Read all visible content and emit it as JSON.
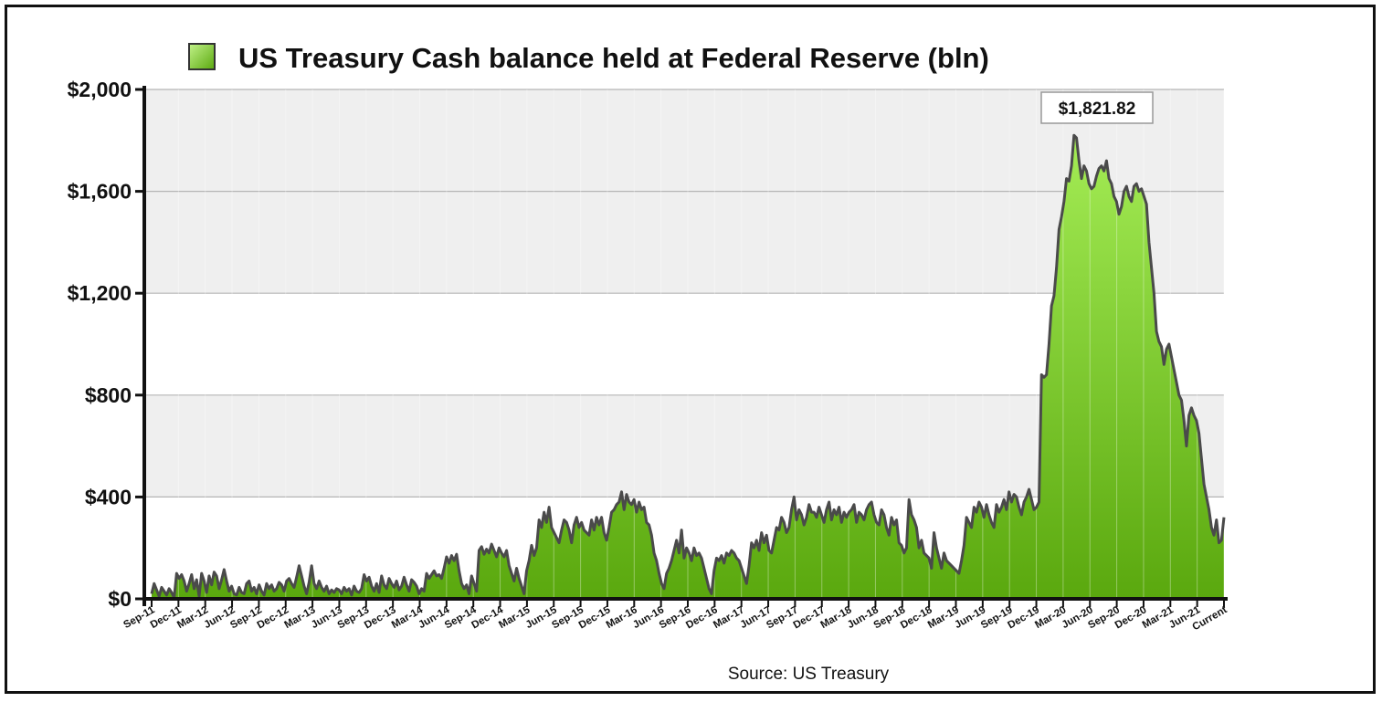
{
  "chart_data": {
    "type": "area",
    "title": "US Treasury Cash balance held at Federal Reserve (bln)",
    "source": "Source: US Treasury",
    "ylim": [
      0,
      2000
    ],
    "yticks": [
      "$0",
      "$400",
      "$800",
      "$1,200",
      "$1,600",
      "$2,000"
    ],
    "ytick_values": [
      0,
      400,
      800,
      1200,
      1600,
      2000
    ],
    "xtick_labels": [
      "Sep-11",
      "Dec-11",
      "Mar-12",
      "Jun-12",
      "Sep-12",
      "Dec-12",
      "Mar-13",
      "Jun-13",
      "Sep-13",
      "Dec-13",
      "Mar-14",
      "Jun-14",
      "Sep-14",
      "Dec-14",
      "Mar-15",
      "Jun-15",
      "Sep-15",
      "Dec-15",
      "Mar-16",
      "Jun-16",
      "Sep-16",
      "Dec-16",
      "Mar-17",
      "Jun-17",
      "Sep-17",
      "Dec-17",
      "Mar-18",
      "Jun-18",
      "Sep-18",
      "Dec-18",
      "Mar-19",
      "Jun-19",
      "Sep-19",
      "Dec-19",
      "Mar-20",
      "Jun-20",
      "Sep-20",
      "Dec-20",
      "Mar-21",
      "Jun-21",
      "Current"
    ],
    "peak_label": "$1,821.82",
    "peak_value": 1821.82,
    "grid": true,
    "colors": {
      "fill_light": "#9be34a",
      "fill_dark": "#5aa80e",
      "line": "#4a4a4a",
      "plot_bg": "#efefef",
      "gridline": "#b5b5b5"
    },
    "series": [
      {
        "values": [
          20,
          60,
          35,
          10,
          45,
          30,
          15,
          40,
          25,
          5,
          100,
          80,
          95,
          70,
          30,
          60,
          95,
          40,
          75,
          10,
          100,
          70,
          25,
          90,
          55,
          105,
          90,
          40,
          75,
          115,
          70,
          30,
          50,
          20,
          15,
          45,
          25,
          20,
          60,
          70,
          30,
          45,
          20,
          55,
          30,
          15,
          60,
          40,
          55,
          30,
          40,
          65,
          55,
          30,
          70,
          80,
          60,
          45,
          85,
          130,
          90,
          50,
          20,
          65,
          130,
          60,
          40,
          70,
          45,
          30,
          50,
          20,
          35,
          25,
          40,
          35,
          20,
          45,
          30,
          40,
          15,
          50,
          30,
          25,
          40,
          95,
          70,
          85,
          50,
          30,
          60,
          25,
          90,
          55,
          40,
          80,
          60,
          45,
          70,
          35,
          50,
          85,
          55,
          30,
          75,
          65,
          50,
          20,
          40,
          30,
          100,
          80,
          95,
          110,
          90,
          95,
          80,
          120,
          165,
          140,
          170,
          150,
          175,
          110,
          60,
          40,
          55,
          20,
          90,
          60,
          30,
          190,
          205,
          175,
          195,
          180,
          215,
          190,
          165,
          200,
          180,
          165,
          190,
          130,
          100,
          70,
          120,
          80,
          50,
          20,
          110,
          150,
          210,
          170,
          200,
          310,
          280,
          340,
          300,
          360,
          280,
          260,
          240,
          220,
          270,
          310,
          300,
          270,
          220,
          290,
          320,
          280,
          300,
          270,
          260,
          250,
          310,
          270,
          320,
          290,
          320,
          260,
          230,
          280,
          340,
          350,
          370,
          380,
          420,
          350,
          410,
          380,
          370,
          390,
          340,
          380,
          350,
          360,
          300,
          290,
          250,
          180,
          150,
          100,
          60,
          40,
          100,
          120,
          150,
          190,
          230,
          180,
          270,
          160,
          200,
          180,
          150,
          200,
          170,
          180,
          160,
          120,
          80,
          40,
          20,
          110,
          160,
          150,
          170,
          140,
          180,
          170,
          190,
          180,
          160,
          150,
          120,
          90,
          60,
          130,
          220,
          200,
          230,
          190,
          260,
          220,
          250,
          190,
          180,
          230,
          280,
          270,
          320,
          300,
          260,
          280,
          350,
          400,
          310,
          350,
          330,
          290,
          320,
          370,
          340,
          340,
          320,
          360,
          330,
          300,
          350,
          380,
          310,
          350,
          330,
          360,
          300,
          340,
          320,
          340,
          350,
          370,
          300,
          340,
          330,
          310,
          350,
          370,
          380,
          330,
          300,
          290,
          350,
          330,
          280,
          250,
          320,
          290,
          310,
          220,
          210,
          180,
          200,
          390,
          330,
          310,
          280,
          200,
          230,
          180,
          170,
          160,
          120,
          260,
          200,
          160,
          120,
          180,
          150,
          140,
          130,
          120,
          110,
          100,
          150,
          210,
          320,
          300,
          280,
          360,
          340,
          380,
          360,
          320,
          370,
          330,
          300,
          280,
          370,
          340,
          360,
          390,
          350,
          420,
          380,
          410,
          400,
          360,
          330,
          380,
          400,
          430,
          390,
          350,
          360,
          380,
          880,
          870,
          880,
          1000,
          1150,
          1190,
          1300,
          1450,
          1500,
          1560,
          1650,
          1640,
          1700,
          1820,
          1810,
          1720,
          1650,
          1700,
          1680,
          1630,
          1610,
          1620,
          1660,
          1690,
          1700,
          1680,
          1720,
          1650,
          1630,
          1580,
          1560,
          1510,
          1540,
          1600,
          1620,
          1580,
          1560,
          1620,
          1630,
          1600,
          1610,
          1580,
          1550,
          1400,
          1300,
          1200,
          1050,
          1010,
          990,
          920,
          980,
          1000,
          950,
          900,
          850,
          800,
          780,
          700,
          600,
          720,
          750,
          720,
          700,
          650,
          550,
          450,
          400,
          350,
          280,
          250,
          310,
          220,
          230,
          320
        ]
      }
    ]
  }
}
